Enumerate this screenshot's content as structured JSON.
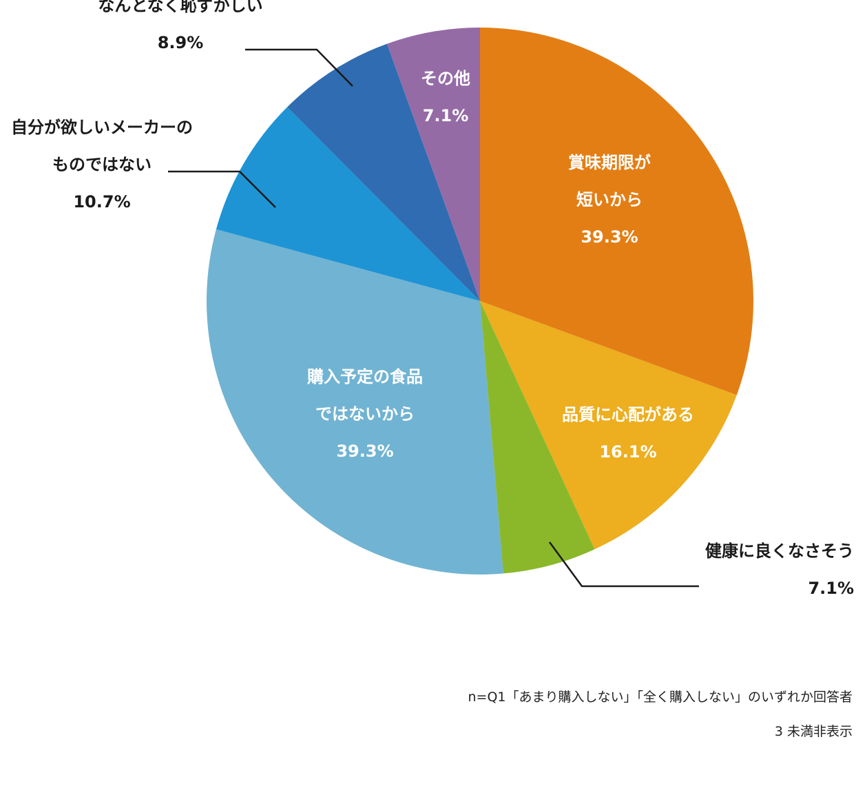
{
  "chart_data": {
    "type": "pie",
    "start_angle_deg": 0,
    "direction": "clockwise",
    "slices": [
      {
        "label": "賞味期限が短いから",
        "label_lines": [
          "賞味期限が",
          "短いから"
        ],
        "value_text": "39.3%",
        "value": 39.3,
        "color": "#E37E15",
        "label_placement": "inside"
      },
      {
        "label": "品質に心配がある",
        "label_lines": [
          "品質に心配がある"
        ],
        "value_text": "16.1%",
        "value": 16.1,
        "color": "#EDAE1F",
        "label_placement": "inside"
      },
      {
        "label": "健康に良くなさそう",
        "label_lines": [
          "健康に良くなさそう"
        ],
        "value_text": "7.1%",
        "value": 7.1,
        "color": "#8AB82A",
        "label_placement": "outside"
      },
      {
        "label": "購入予定の食品ではないから",
        "label_lines": [
          "購入予定の食品",
          "ではないから"
        ],
        "value_text": "39.3%",
        "value": 39.3,
        "color": "#71B3D2",
        "label_placement": "inside"
      },
      {
        "label": "自分が欲しいメーカーのものではない",
        "label_lines": [
          "自分が欲しいメーカーの",
          "ものではない"
        ],
        "value_text": "10.7%",
        "value": 10.7,
        "color": "#1E94D4",
        "label_placement": "outside"
      },
      {
        "label": "なんとなく恥ずかしい",
        "label_lines": [
          "なんとなく恥ずかしい"
        ],
        "value_text": "8.9%",
        "value": 8.9,
        "color": "#306CB1",
        "label_placement": "outside"
      },
      {
        "label": "その他",
        "label_lines": [
          "その他"
        ],
        "value_text": "7.1%",
        "value": 7.1,
        "color": "#956BA6",
        "label_placement": "inside"
      }
    ]
  },
  "notes": {
    "sample": "n=Q1「あまり購入しない」「全く購入しない」のいずれか回答者",
    "footnote": "3 未満非表示"
  }
}
